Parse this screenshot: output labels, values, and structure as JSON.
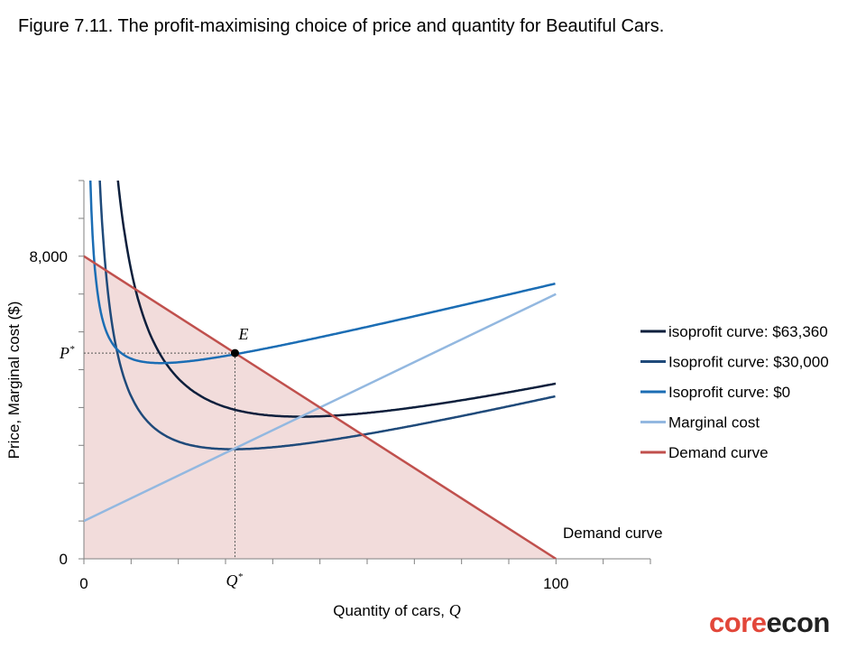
{
  "figure_title": "Figure 7.11. The profit-maximising choice of price and quantity for Beautiful Cars.",
  "logo": {
    "part1": "core",
    "part2": "econ"
  },
  "colors": {
    "isoprofit_63360": "#0d1f3c",
    "isoprofit_30000": "#1f4a7a",
    "isoprofit_0": "#1b6db4",
    "marginal_cost": "#93b8e0",
    "demand": "#c0504d",
    "demand_fill": "#f2dcdb"
  },
  "chart_data": {
    "type": "line",
    "xlabel_text": "Quantity of cars, ",
    "xlabel_var": "Q",
    "ylabel": "Price, Marginal cost ($)",
    "xlim": [
      0,
      120
    ],
    "ylim": [
      0,
      10000
    ],
    "x_tick_labels": [
      {
        "x": 0,
        "label": "0"
      },
      {
        "x": 100,
        "label": "100"
      }
    ],
    "y_tick_labels": [
      {
        "y": 0,
        "label": "0"
      },
      {
        "y": 8000,
        "label": "8,000"
      }
    ],
    "x_minor_ticks": [
      0,
      10,
      20,
      30,
      40,
      50,
      60,
      70,
      80,
      90,
      100,
      110,
      120
    ],
    "y_minor_ticks": [
      0,
      1000,
      2000,
      3000,
      4000,
      5000,
      6000,
      7000,
      8000,
      9000,
      10000
    ],
    "point_E": {
      "label": "E",
      "x": 32,
      "y": 5440
    },
    "p_star_label": "P",
    "q_star_label": "Q",
    "star": "*",
    "series": [
      {
        "name": "isoprofit curve: $63,360",
        "key": "isoprofit_63360",
        "profit": 63360
      },
      {
        "name": "Isoprofit curve: $30,000",
        "key": "isoprofit_30000",
        "profit": 30000
      },
      {
        "name": "Isoprofit curve: $0",
        "key": "isoprofit_0",
        "profit": 0
      },
      {
        "name": "Marginal cost",
        "key": "marginal_cost",
        "x": [
          0,
          100
        ],
        "y": [
          1000,
          7000
        ]
      },
      {
        "name": "Demand curve",
        "key": "demand",
        "x": [
          0,
          100
        ],
        "y": [
          8000,
          0
        ]
      }
    ],
    "annotation": "Demand curve"
  }
}
